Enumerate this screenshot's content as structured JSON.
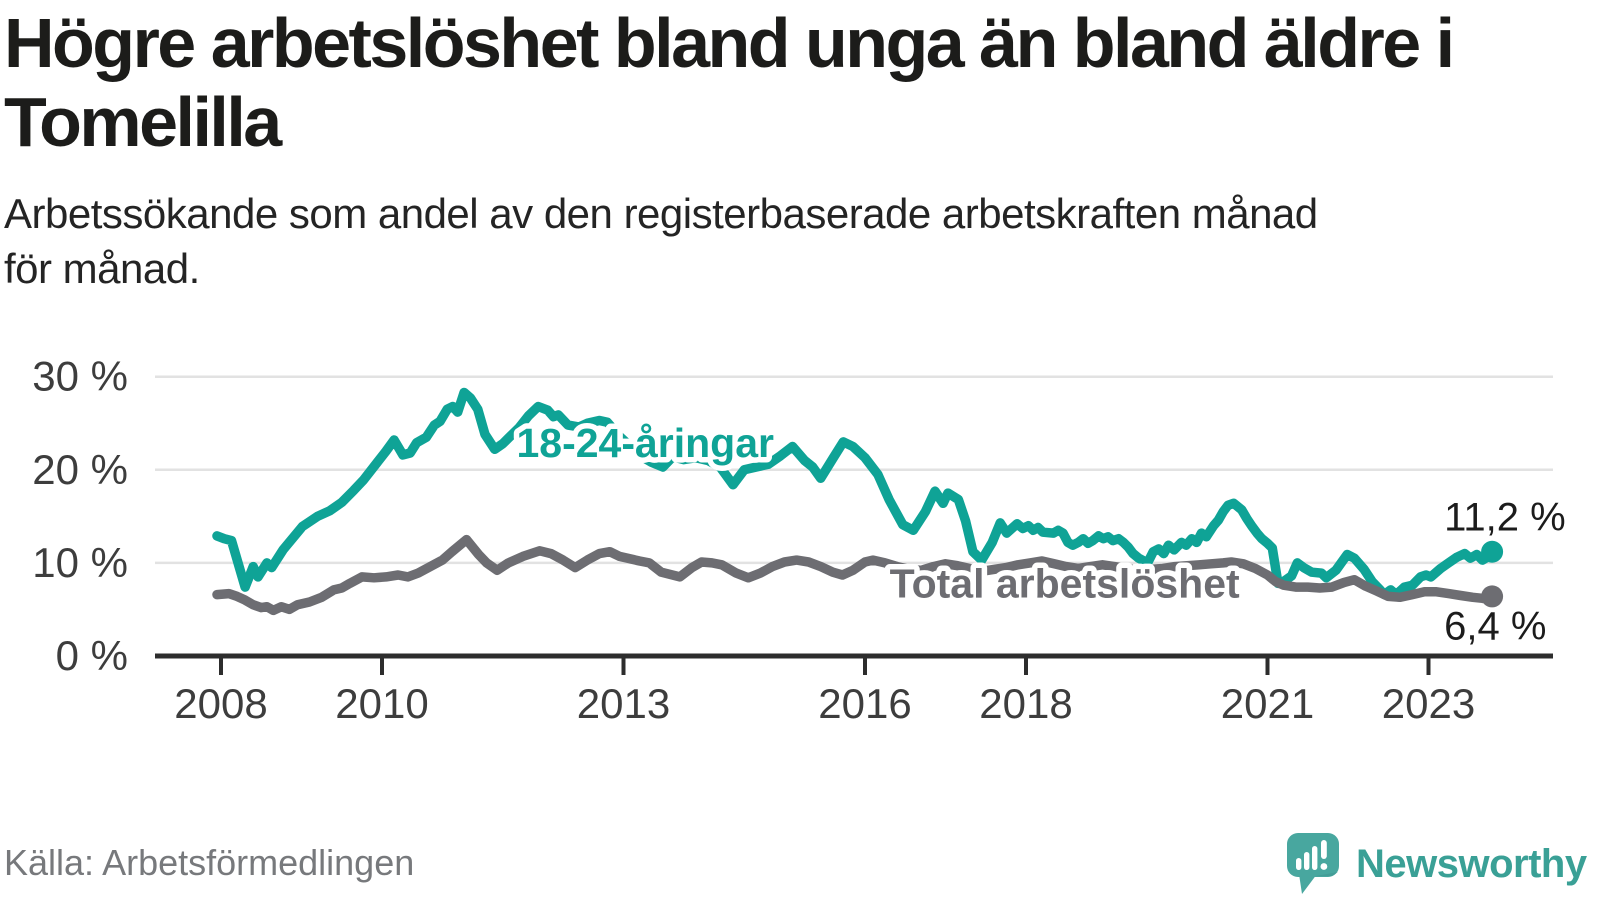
{
  "header": {
    "title": "Högre arbetslöshet bland unga än bland äldre i\nTomelilla",
    "subtitle": "Arbetssökande som andel av den registerbaserade arbetskraften månad\nför månad."
  },
  "footer": {
    "source": "Källa: Arbetsförmedlingen",
    "brand": "Newsworthy"
  },
  "chart_data": {
    "type": "line",
    "title": "Högre arbetslöshet bland unga än bland äldre i Tomelilla",
    "xlabel": "",
    "ylabel": "",
    "x_ticks": [
      2008,
      2010,
      2013,
      2016,
      2018,
      2021,
      2023
    ],
    "y_ticks": [
      0,
      10,
      20,
      30
    ],
    "y_suffix": " %",
    "xlim": [
      2007.2,
      2024.5
    ],
    "ylim": [
      0,
      32
    ],
    "grid": "horizontal",
    "legend_position": "inline-labels",
    "colors": {
      "grid": "#e2e2e2",
      "axis": "#2d2d2d",
      "tick_label": "#3d3d3d",
      "value_label": "#1c1c1c",
      "accent_teal": "#0fa396",
      "accent_gray": "#6d6d72",
      "brand_teal": "#3aa096"
    },
    "series": [
      {
        "name": "18-24-åringar",
        "color": "#0fa396",
        "label_pos": [
          2013.27,
          21.4
        ],
        "end_label": "11,2 %",
        "end_label_side": "above",
        "end_value": 11.2,
        "points": [
          [
            2007.95,
            12.9
          ],
          [
            2008.04,
            12.6
          ],
          [
            2008.13,
            12.4
          ],
          [
            2008.3,
            7.4
          ],
          [
            2008.4,
            9.6
          ],
          [
            2008.46,
            8.5
          ],
          [
            2008.57,
            10.0
          ],
          [
            2008.63,
            9.5
          ],
          [
            2008.77,
            11.4
          ],
          [
            2009.01,
            13.9
          ],
          [
            2009.2,
            15.0
          ],
          [
            2009.35,
            15.6
          ],
          [
            2009.5,
            16.5
          ],
          [
            2009.65,
            17.8
          ],
          [
            2009.77,
            18.9
          ],
          [
            2009.94,
            20.8
          ],
          [
            2010.05,
            22.0
          ],
          [
            2010.15,
            23.2
          ],
          [
            2010.26,
            21.6
          ],
          [
            2010.35,
            21.8
          ],
          [
            2010.43,
            22.9
          ],
          [
            2010.55,
            23.5
          ],
          [
            2010.65,
            24.8
          ],
          [
            2010.72,
            25.2
          ],
          [
            2010.81,
            26.5
          ],
          [
            2010.88,
            26.8
          ],
          [
            2010.94,
            26.2
          ],
          [
            2011.02,
            28.3
          ],
          [
            2011.1,
            27.7
          ],
          [
            2011.19,
            26.5
          ],
          [
            2011.28,
            23.8
          ],
          [
            2011.4,
            22.2
          ],
          [
            2011.5,
            22.8
          ],
          [
            2011.57,
            23.4
          ],
          [
            2011.7,
            24.5
          ],
          [
            2011.82,
            25.8
          ],
          [
            2011.94,
            26.8
          ],
          [
            2012.06,
            26.4
          ],
          [
            2012.13,
            25.7
          ],
          [
            2012.19,
            25.9
          ],
          [
            2012.31,
            24.8
          ],
          [
            2012.45,
            24.6
          ],
          [
            2012.55,
            25.0
          ],
          [
            2012.7,
            25.3
          ],
          [
            2012.8,
            25.1
          ],
          [
            2012.95,
            23.6
          ],
          [
            2013.1,
            22.4
          ],
          [
            2013.25,
            21.3
          ],
          [
            2013.35,
            20.8
          ],
          [
            2013.49,
            20.3
          ],
          [
            2013.61,
            21.4
          ],
          [
            2013.75,
            21.1
          ],
          [
            2013.9,
            21.3
          ],
          [
            2014.05,
            21.0
          ],
          [
            2014.2,
            20.3
          ],
          [
            2014.36,
            18.4
          ],
          [
            2014.5,
            20.0
          ],
          [
            2014.65,
            20.3
          ],
          [
            2014.8,
            20.6
          ],
          [
            2014.95,
            21.5
          ],
          [
            2015.1,
            22.5
          ],
          [
            2015.25,
            21.0
          ],
          [
            2015.35,
            20.3
          ],
          [
            2015.45,
            19.1
          ],
          [
            2015.6,
            21.2
          ],
          [
            2015.73,
            23.0
          ],
          [
            2015.85,
            22.5
          ],
          [
            2016.0,
            21.3
          ],
          [
            2016.16,
            19.5
          ],
          [
            2016.3,
            16.8
          ],
          [
            2016.47,
            14.1
          ],
          [
            2016.6,
            13.5
          ],
          [
            2016.75,
            15.5
          ],
          [
            2016.87,
            17.7
          ],
          [
            2016.97,
            16.4
          ],
          [
            2017.03,
            17.5
          ],
          [
            2017.16,
            16.8
          ],
          [
            2017.25,
            14.5
          ],
          [
            2017.34,
            11.2
          ],
          [
            2017.45,
            10.3
          ],
          [
            2017.58,
            12.2
          ],
          [
            2017.68,
            14.3
          ],
          [
            2017.76,
            13.2
          ],
          [
            2017.89,
            14.2
          ],
          [
            2017.96,
            13.7
          ],
          [
            2018.03,
            14.0
          ],
          [
            2018.09,
            13.5
          ],
          [
            2018.15,
            13.8
          ],
          [
            2018.21,
            13.3
          ],
          [
            2018.34,
            13.2
          ],
          [
            2018.4,
            13.5
          ],
          [
            2018.46,
            13.2
          ],
          [
            2018.52,
            12.2
          ],
          [
            2018.58,
            11.9
          ],
          [
            2018.65,
            12.2
          ],
          [
            2018.71,
            12.6
          ],
          [
            2018.77,
            12.1
          ],
          [
            2018.83,
            12.4
          ],
          [
            2018.9,
            12.9
          ],
          [
            2018.96,
            12.6
          ],
          [
            2019.02,
            12.8
          ],
          [
            2019.08,
            12.4
          ],
          [
            2019.15,
            12.6
          ],
          [
            2019.21,
            12.2
          ],
          [
            2019.27,
            11.7
          ],
          [
            2019.33,
            11.0
          ],
          [
            2019.4,
            10.5
          ],
          [
            2019.51,
            10.0
          ],
          [
            2019.58,
            11.2
          ],
          [
            2019.65,
            11.5
          ],
          [
            2019.71,
            11.0
          ],
          [
            2019.77,
            11.9
          ],
          [
            2019.84,
            11.4
          ],
          [
            2019.93,
            12.2
          ],
          [
            2019.99,
            11.9
          ],
          [
            2020.06,
            12.6
          ],
          [
            2020.12,
            12.2
          ],
          [
            2020.18,
            13.2
          ],
          [
            2020.24,
            12.8
          ],
          [
            2020.33,
            14.0
          ],
          [
            2020.39,
            14.6
          ],
          [
            2020.45,
            15.5
          ],
          [
            2020.51,
            16.2
          ],
          [
            2020.58,
            16.4
          ],
          [
            2020.68,
            15.7
          ],
          [
            2020.74,
            14.8
          ],
          [
            2020.81,
            13.9
          ],
          [
            2020.87,
            13.2
          ],
          [
            2020.93,
            12.6
          ],
          [
            2021.0,
            12.1
          ],
          [
            2021.06,
            11.6
          ],
          [
            2021.13,
            7.8
          ],
          [
            2021.2,
            8.0
          ],
          [
            2021.3,
            8.6
          ],
          [
            2021.37,
            10.0
          ],
          [
            2021.45,
            9.5
          ],
          [
            2021.55,
            9.0
          ],
          [
            2021.67,
            8.9
          ],
          [
            2021.73,
            8.4
          ],
          [
            2021.85,
            9.2
          ],
          [
            2021.99,
            10.9
          ],
          [
            2022.08,
            10.5
          ],
          [
            2022.2,
            9.3
          ],
          [
            2022.3,
            8.0
          ],
          [
            2022.4,
            7.1
          ],
          [
            2022.45,
            6.6
          ],
          [
            2022.53,
            7.1
          ],
          [
            2022.6,
            6.6
          ],
          [
            2022.7,
            7.4
          ],
          [
            2022.8,
            7.6
          ],
          [
            2022.9,
            8.5
          ],
          [
            2022.97,
            8.7
          ],
          [
            2023.03,
            8.5
          ],
          [
            2023.15,
            9.4
          ],
          [
            2023.25,
            10.0
          ],
          [
            2023.35,
            10.6
          ],
          [
            2023.45,
            11.0
          ],
          [
            2023.52,
            10.5
          ],
          [
            2023.6,
            10.9
          ],
          [
            2023.67,
            10.3
          ],
          [
            2023.73,
            10.6
          ],
          [
            2023.79,
            11.2
          ]
        ]
      },
      {
        "name": "Total arbetslöshet",
        "color": "#6d6d72",
        "label_pos": [
          2018.48,
          6.3
        ],
        "end_label": "6,4 %",
        "end_label_side": "below",
        "end_value": 6.4,
        "points": [
          [
            2007.95,
            6.6
          ],
          [
            2008.1,
            6.7
          ],
          [
            2008.2,
            6.4
          ],
          [
            2008.3,
            6.0
          ],
          [
            2008.4,
            5.5
          ],
          [
            2008.5,
            5.2
          ],
          [
            2008.57,
            5.3
          ],
          [
            2008.65,
            4.9
          ],
          [
            2008.75,
            5.3
          ],
          [
            2008.85,
            5.0
          ],
          [
            2008.95,
            5.5
          ],
          [
            2009.1,
            5.8
          ],
          [
            2009.25,
            6.3
          ],
          [
            2009.4,
            7.1
          ],
          [
            2009.5,
            7.3
          ],
          [
            2009.6,
            7.8
          ],
          [
            2009.75,
            8.5
          ],
          [
            2009.9,
            8.4
          ],
          [
            2010.05,
            8.5
          ],
          [
            2010.2,
            8.7
          ],
          [
            2010.32,
            8.5
          ],
          [
            2010.45,
            8.9
          ],
          [
            2010.6,
            9.6
          ],
          [
            2010.75,
            10.3
          ],
          [
            2010.87,
            11.2
          ],
          [
            2011.05,
            12.5
          ],
          [
            2011.2,
            10.9
          ],
          [
            2011.3,
            10.0
          ],
          [
            2011.43,
            9.2
          ],
          [
            2011.57,
            10.0
          ],
          [
            2011.75,
            10.7
          ],
          [
            2011.96,
            11.3
          ],
          [
            2012.1,
            11.0
          ],
          [
            2012.25,
            10.3
          ],
          [
            2012.4,
            9.5
          ],
          [
            2012.55,
            10.3
          ],
          [
            2012.7,
            11.0
          ],
          [
            2012.83,
            11.2
          ],
          [
            2012.95,
            10.7
          ],
          [
            2013.2,
            10.2
          ],
          [
            2013.32,
            10.0
          ],
          [
            2013.47,
            9.0
          ],
          [
            2013.7,
            8.5
          ],
          [
            2013.85,
            9.5
          ],
          [
            2013.97,
            10.1
          ],
          [
            2014.1,
            10.0
          ],
          [
            2014.22,
            9.8
          ],
          [
            2014.4,
            8.9
          ],
          [
            2014.55,
            8.4
          ],
          [
            2014.7,
            8.9
          ],
          [
            2014.85,
            9.6
          ],
          [
            2015.0,
            10.1
          ],
          [
            2015.15,
            10.3
          ],
          [
            2015.3,
            10.1
          ],
          [
            2015.45,
            9.6
          ],
          [
            2015.6,
            9.0
          ],
          [
            2015.72,
            8.7
          ],
          [
            2015.85,
            9.2
          ],
          [
            2016.0,
            10.1
          ],
          [
            2016.1,
            10.3
          ],
          [
            2016.25,
            10.0
          ],
          [
            2016.4,
            9.6
          ],
          [
            2016.55,
            9.3
          ],
          [
            2016.7,
            9.2
          ],
          [
            2016.85,
            9.6
          ],
          [
            2017.0,
            9.9
          ],
          [
            2017.15,
            9.7
          ],
          [
            2017.3,
            9.4
          ],
          [
            2017.45,
            9.1
          ],
          [
            2017.6,
            9.3
          ],
          [
            2017.75,
            9.5
          ],
          [
            2017.9,
            9.8
          ],
          [
            2018.05,
            10.0
          ],
          [
            2018.2,
            10.2
          ],
          [
            2018.35,
            9.9
          ],
          [
            2018.5,
            9.6
          ],
          [
            2018.65,
            9.4
          ],
          [
            2018.8,
            9.6
          ],
          [
            2018.95,
            9.8
          ],
          [
            2019.1,
            9.6
          ],
          [
            2019.25,
            9.4
          ],
          [
            2019.4,
            9.2
          ],
          [
            2019.55,
            9.3
          ],
          [
            2019.7,
            9.4
          ],
          [
            2019.85,
            9.6
          ],
          [
            2020.0,
            9.7
          ],
          [
            2020.15,
            9.8
          ],
          [
            2020.3,
            9.9
          ],
          [
            2020.45,
            10.0
          ],
          [
            2020.55,
            10.1
          ],
          [
            2020.7,
            9.9
          ],
          [
            2020.85,
            9.4
          ],
          [
            2021.0,
            8.7
          ],
          [
            2021.1,
            8.0
          ],
          [
            2021.2,
            7.6
          ],
          [
            2021.35,
            7.4
          ],
          [
            2021.5,
            7.4
          ],
          [
            2021.65,
            7.3
          ],
          [
            2021.8,
            7.4
          ],
          [
            2021.95,
            7.9
          ],
          [
            2022.08,
            8.2
          ],
          [
            2022.22,
            7.5
          ],
          [
            2022.35,
            7.0
          ],
          [
            2022.5,
            6.4
          ],
          [
            2022.65,
            6.3
          ],
          [
            2022.8,
            6.6
          ],
          [
            2022.95,
            6.9
          ],
          [
            2023.1,
            6.9
          ],
          [
            2023.25,
            6.7
          ],
          [
            2023.4,
            6.5
          ],
          [
            2023.55,
            6.3
          ],
          [
            2023.67,
            6.2
          ],
          [
            2023.73,
            6.1
          ],
          [
            2023.79,
            6.4
          ]
        ]
      }
    ]
  }
}
